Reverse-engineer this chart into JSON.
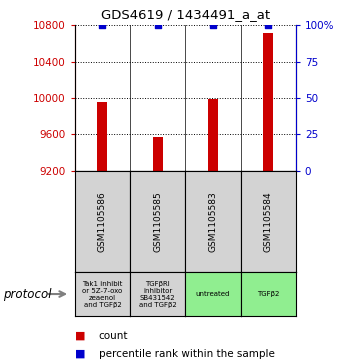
{
  "title": "GDS4619 / 1434491_a_at",
  "samples": [
    "GSM1105586",
    "GSM1105585",
    "GSM1105583",
    "GSM1105584"
  ],
  "counts": [
    9955,
    9575,
    9990,
    10720
  ],
  "percentiles": [
    100,
    100,
    100,
    100
  ],
  "left_ylim": [
    9200,
    10800
  ],
  "right_ylim": [
    0,
    100
  ],
  "left_yticks": [
    9200,
    9600,
    10000,
    10400,
    10800
  ],
  "right_yticks": [
    0,
    25,
    50,
    75,
    100
  ],
  "right_yticklabels": [
    "0",
    "25",
    "50",
    "75",
    "100%"
  ],
  "bar_color": "#cc0000",
  "dot_color": "#0000cc",
  "protocols": [
    {
      "label": "Tak1 inhibit\nor 5Z-7-oxo\nzeaenol\nand TGFβ2",
      "color": "#d3d3d3"
    },
    {
      "label": "TGFβRI\ninhibitor\nSB431542\nand TGFβ2",
      "color": "#d3d3d3"
    },
    {
      "label": "untreated",
      "color": "#90ee90"
    },
    {
      "label": "TGFβ2",
      "color": "#90ee90"
    }
  ],
  "sample_box_color": "#d3d3d3",
  "legend_count_label": "count",
  "legend_pct_label": "percentile rank within the sample",
  "protocol_label": "protocol",
  "fig_width": 3.4,
  "fig_height": 3.63,
  "dpi": 100
}
